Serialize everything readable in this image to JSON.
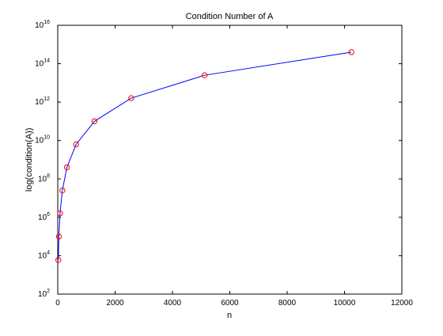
{
  "chart_data": {
    "type": "line",
    "title": "Condition Number of A",
    "xlabel": "n",
    "ylabel": "log(condition(A))",
    "xlim": [
      0,
      12000
    ],
    "ylim": [
      100,
      1e+16
    ],
    "y_scale": "log",
    "grid": false,
    "legend": "none",
    "x_ticks": [
      0,
      2000,
      4000,
      6000,
      8000,
      10000,
      12000
    ],
    "x_tick_labels": [
      "0",
      "2000",
      "4000",
      "6000",
      "8000",
      "10000",
      "12000"
    ],
    "y_ticks": [
      {
        "base": "10",
        "exp": "2",
        "value": 100
      },
      {
        "base": "10",
        "exp": "4",
        "value": 10000
      },
      {
        "base": "10",
        "exp": "6",
        "value": 1000000
      },
      {
        "base": "10",
        "exp": "8",
        "value": 100000000
      },
      {
        "base": "10",
        "exp": "10",
        "value": 10000000000
      },
      {
        "base": "10",
        "exp": "12",
        "value": 1000000000000
      },
      {
        "base": "10",
        "exp": "14",
        "value": 100000000000000
      },
      {
        "base": "10",
        "exp": "16",
        "value": 10000000000000000
      }
    ],
    "series": [
      {
        "line_color": "#0000ff",
        "marker": "circle",
        "marker_color": "#ff0000",
        "x": [
          20,
          40,
          80,
          160,
          320,
          640,
          1280,
          2560,
          5120,
          10240
        ],
        "y": [
          6000.0,
          100000.0,
          1600000.0,
          25000000.0,
          400000000.0,
          6300000000.0,
          100000000000.0,
          1600000000000.0,
          25000000000000.0,
          400000000000000.0
        ]
      }
    ]
  }
}
